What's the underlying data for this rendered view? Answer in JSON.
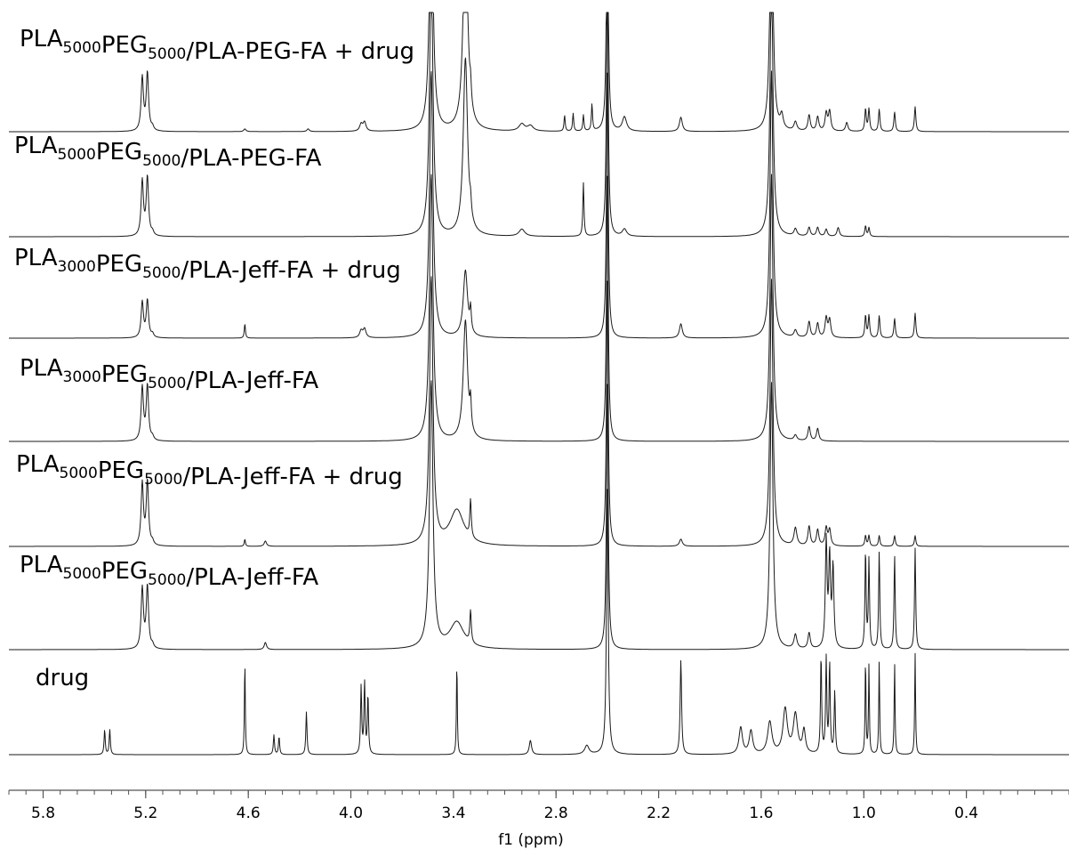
{
  "chart_data": {
    "type": "line",
    "xlabel": "f1 (ppm)",
    "xlim": [
      6.0,
      -0.2
    ],
    "x_reversed": true,
    "ticks": [
      {
        "value": 5.8,
        "label": "5.8"
      },
      {
        "value": 5.2,
        "label": "5.2"
      },
      {
        "value": 4.6,
        "label": "4.6"
      },
      {
        "value": 4.0,
        "label": "4.0"
      },
      {
        "value": 3.4,
        "label": "3.4"
      },
      {
        "value": 2.8,
        "label": "2.8"
      },
      {
        "value": 2.2,
        "label": "2.2"
      },
      {
        "value": 1.6,
        "label": "1.6"
      },
      {
        "value": 1.0,
        "label": "1.0"
      },
      {
        "value": 0.4,
        "label": "0.4"
      }
    ],
    "line_color": "#1a1a1a",
    "series": [
      {
        "name": "PLA5000PEG5000/PLA-PEG-FA + drug",
        "label_parts": [
          [
            "PLA",
            ""
          ],
          [
            "5000",
            "sub"
          ],
          [
            "PEG",
            ""
          ],
          [
            "5000",
            "sub"
          ],
          [
            "/PLA-PEG-FA + drug",
            ""
          ]
        ],
        "peaks": [
          [
            5.22,
            60,
            0.008
          ],
          [
            5.19,
            65,
            0.008
          ],
          [
            5.16,
            4,
            0.008
          ],
          [
            4.62,
            3,
            0.008
          ],
          [
            4.25,
            3,
            0.008
          ],
          [
            3.94,
            8,
            0.01
          ],
          [
            3.92,
            10,
            0.01
          ],
          [
            3.53,
            300,
            0.012
          ],
          [
            3.33,
            250,
            0.015
          ],
          [
            3.3,
            20,
            0.005
          ],
          [
            3.0,
            8,
            0.02
          ],
          [
            2.95,
            6,
            0.02
          ],
          [
            2.75,
            18,
            0.004
          ],
          [
            2.7,
            20,
            0.004
          ],
          [
            2.64,
            18,
            0.004
          ],
          [
            2.59,
            30,
            0.004
          ],
          [
            2.5,
            300,
            0.006
          ],
          [
            2.4,
            16,
            0.015
          ],
          [
            2.07,
            16,
            0.01
          ],
          [
            1.54,
            300,
            0.01
          ],
          [
            1.48,
            15,
            0.01
          ],
          [
            1.4,
            10,
            0.01
          ],
          [
            1.32,
            18,
            0.008
          ],
          [
            1.27,
            16,
            0.008
          ],
          [
            1.22,
            20,
            0.008
          ],
          [
            1.2,
            22,
            0.008
          ],
          [
            1.1,
            10,
            0.008
          ],
          [
            0.99,
            25,
            0.005
          ],
          [
            0.97,
            25,
            0.005
          ],
          [
            0.91,
            25,
            0.005
          ],
          [
            0.82,
            22,
            0.005
          ],
          [
            0.7,
            28,
            0.005
          ]
        ]
      },
      {
        "name": "PLA5000PEG5000/PLA-PEG-FA",
        "label_parts": [
          [
            "PLA",
            ""
          ],
          [
            "5000",
            "sub"
          ],
          [
            "PEG",
            ""
          ],
          [
            "5000",
            "sub"
          ],
          [
            "/PLA-PEG-FA",
            ""
          ]
        ],
        "peaks": [
          [
            5.22,
            62,
            0.008
          ],
          [
            5.19,
            66,
            0.008
          ],
          [
            5.16,
            4,
            0.008
          ],
          [
            3.53,
            300,
            0.012
          ],
          [
            3.33,
            200,
            0.015
          ],
          [
            3.3,
            15,
            0.005
          ],
          [
            3.0,
            8,
            0.02
          ],
          [
            2.64,
            60,
            0.004
          ],
          [
            2.5,
            300,
            0.006
          ],
          [
            2.4,
            8,
            0.015
          ],
          [
            1.54,
            300,
            0.01
          ],
          [
            1.4,
            8,
            0.01
          ],
          [
            1.32,
            10,
            0.008
          ],
          [
            1.27,
            10,
            0.008
          ],
          [
            1.22,
            8,
            0.008
          ],
          [
            1.15,
            10,
            0.008
          ],
          [
            0.99,
            12,
            0.005
          ],
          [
            0.97,
            10,
            0.005
          ]
        ]
      },
      {
        "name": "PLA3000PEG5000/PLA-Jeff-FA + drug",
        "label_parts": [
          [
            "PLA",
            ""
          ],
          [
            "3000",
            "sub"
          ],
          [
            "PEG",
            ""
          ],
          [
            "5000",
            "sub"
          ],
          [
            "/PLA-Jeff-FA + drug",
            ""
          ]
        ],
        "peaks": [
          [
            5.22,
            40,
            0.008
          ],
          [
            5.19,
            42,
            0.008
          ],
          [
            5.16,
            4,
            0.008
          ],
          [
            4.62,
            16,
            0.004
          ],
          [
            3.94,
            8,
            0.01
          ],
          [
            3.92,
            10,
            0.01
          ],
          [
            3.53,
            300,
            0.012
          ],
          [
            3.33,
            75,
            0.015
          ],
          [
            3.3,
            25,
            0.005
          ],
          [
            2.5,
            300,
            0.006
          ],
          [
            2.07,
            16,
            0.01
          ],
          [
            1.54,
            300,
            0.01
          ],
          [
            1.4,
            8,
            0.01
          ],
          [
            1.32,
            18,
            0.008
          ],
          [
            1.27,
            16,
            0.008
          ],
          [
            1.22,
            22,
            0.008
          ],
          [
            1.2,
            20,
            0.008
          ],
          [
            0.99,
            25,
            0.005
          ],
          [
            0.97,
            25,
            0.005
          ],
          [
            0.91,
            25,
            0.005
          ],
          [
            0.82,
            22,
            0.005
          ],
          [
            0.7,
            28,
            0.005
          ]
        ]
      },
      {
        "name": "PLA3000PEG5000/PLA-Jeff-FA",
        "label_parts": [
          [
            "PLA",
            ""
          ],
          [
            "3000",
            "sub"
          ],
          [
            "PEG",
            ""
          ],
          [
            "5000",
            "sub"
          ],
          [
            "/PLA-Jeff-FA",
            ""
          ]
        ],
        "peaks": [
          [
            5.22,
            60,
            0.008
          ],
          [
            5.19,
            62,
            0.008
          ],
          [
            5.16,
            4,
            0.008
          ],
          [
            3.53,
            300,
            0.012
          ],
          [
            3.33,
            135,
            0.015
          ],
          [
            3.3,
            30,
            0.005
          ],
          [
            2.5,
            300,
            0.006
          ],
          [
            1.54,
            300,
            0.01
          ],
          [
            1.4,
            6,
            0.01
          ],
          [
            1.32,
            16,
            0.008
          ],
          [
            1.27,
            14,
            0.008
          ]
        ]
      },
      {
        "name": "PLA5000PEG5000/PLA-Jeff-FA + drug",
        "label_parts": [
          [
            "PLA",
            ""
          ],
          [
            "5000",
            "sub"
          ],
          [
            "PEG",
            ""
          ],
          [
            "5000",
            "sub"
          ],
          [
            "/PLA-Jeff-FA + drug",
            ""
          ]
        ],
        "peaks": [
          [
            5.22,
            70,
            0.008
          ],
          [
            5.19,
            72,
            0.008
          ],
          [
            5.16,
            4,
            0.008
          ],
          [
            4.62,
            8,
            0.004
          ],
          [
            4.5,
            6,
            0.008
          ],
          [
            3.53,
            300,
            0.012
          ],
          [
            3.38,
            40,
            0.05
          ],
          [
            3.3,
            42,
            0.005
          ],
          [
            2.5,
            300,
            0.006
          ],
          [
            2.07,
            8,
            0.01
          ],
          [
            1.54,
            300,
            0.01
          ],
          [
            1.4,
            20,
            0.01
          ],
          [
            1.32,
            22,
            0.008
          ],
          [
            1.27,
            18,
            0.008
          ],
          [
            1.22,
            20,
            0.008
          ],
          [
            1.2,
            18,
            0.008
          ],
          [
            0.99,
            12,
            0.005
          ],
          [
            0.97,
            12,
            0.005
          ],
          [
            0.91,
            12,
            0.005
          ],
          [
            0.82,
            12,
            0.005
          ],
          [
            0.7,
            12,
            0.005
          ]
        ]
      },
      {
        "name": "PLA5000PEG5000/PLA-Jeff-FA",
        "label_parts": [
          [
            "PLA",
            ""
          ],
          [
            "5000",
            "sub"
          ],
          [
            "PEG",
            ""
          ],
          [
            "5000",
            "sub"
          ],
          [
            "/PLA-Jeff-FA",
            ""
          ]
        ],
        "peaks": [
          [
            5.22,
            68,
            0.008
          ],
          [
            5.19,
            70,
            0.008
          ],
          [
            5.16,
            4,
            0.008
          ],
          [
            4.5,
            8,
            0.008
          ],
          [
            3.53,
            300,
            0.012
          ],
          [
            3.38,
            30,
            0.05
          ],
          [
            3.3,
            36,
            0.005
          ],
          [
            2.5,
            300,
            0.006
          ],
          [
            1.54,
            300,
            0.01
          ],
          [
            1.4,
            16,
            0.01
          ],
          [
            1.32,
            18,
            0.008
          ],
          [
            1.22,
            120,
            0.006
          ],
          [
            1.2,
            100,
            0.006
          ],
          [
            1.18,
            90,
            0.006
          ],
          [
            0.99,
            110,
            0.004
          ],
          [
            0.97,
            100,
            0.004
          ],
          [
            0.91,
            110,
            0.004
          ],
          [
            0.82,
            106,
            0.004
          ],
          [
            0.7,
            114,
            0.004
          ]
        ]
      },
      {
        "name": "drug",
        "label_parts": [
          [
            "drug",
            ""
          ]
        ],
        "peaks": [
          [
            5.44,
            28,
            0.004
          ],
          [
            5.41,
            28,
            0.004
          ],
          [
            4.62,
            106,
            0.003
          ],
          [
            4.45,
            22,
            0.004
          ],
          [
            4.42,
            20,
            0.004
          ],
          [
            4.26,
            48,
            0.004
          ],
          [
            3.94,
            76,
            0.004
          ],
          [
            3.92,
            80,
            0.004
          ],
          [
            3.9,
            66,
            0.004
          ],
          [
            3.38,
            106,
            0.003
          ],
          [
            2.95,
            16,
            0.008
          ],
          [
            2.62,
            10,
            0.015
          ],
          [
            2.5,
            300,
            0.006
          ],
          [
            2.07,
            106,
            0.005
          ],
          [
            1.72,
            30,
            0.012
          ],
          [
            1.66,
            26,
            0.012
          ],
          [
            1.55,
            36,
            0.015
          ],
          [
            1.46,
            50,
            0.015
          ],
          [
            1.4,
            44,
            0.015
          ],
          [
            1.35,
            26,
            0.01
          ],
          [
            1.25,
            110,
            0.004
          ],
          [
            1.22,
            106,
            0.004
          ],
          [
            1.2,
            102,
            0.004
          ],
          [
            1.17,
            70,
            0.004
          ],
          [
            0.99,
            108,
            0.003
          ],
          [
            0.97,
            100,
            0.003
          ],
          [
            0.91,
            106,
            0.003
          ],
          [
            0.82,
            104,
            0.003
          ],
          [
            0.7,
            114,
            0.003
          ]
        ]
      }
    ]
  }
}
